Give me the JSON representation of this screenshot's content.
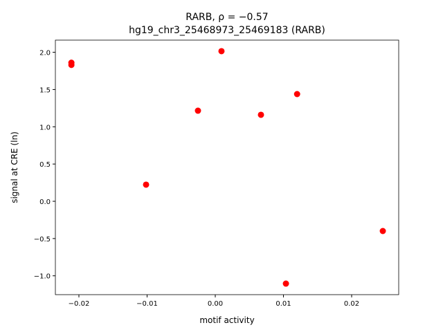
{
  "chart_data": {
    "type": "scatter",
    "title": "RARB, ρ = −0.57",
    "subtitle": "hg19_chr3_25468973_25469183 (RARB)",
    "x_label": "motif activity",
    "y_label": "signal at CRE (ln)",
    "color": "#ff0000",
    "x": [
      -0.0211,
      -0.0211,
      -0.01015,
      -0.00254,
      0.00091,
      0.0067,
      0.01036,
      0.012,
      0.02457
    ],
    "values": [
      1.86,
      1.83,
      0.223,
      1.216,
      2.015,
      1.161,
      -1.105,
      1.439,
      -0.399
    ],
    "xlim": [
      -0.02345,
      0.0269
    ],
    "ylim": [
      -1.253,
      2.163
    ],
    "xticks": [
      {
        "value": -0.02,
        "label": "−0.02"
      },
      {
        "value": -0.01,
        "label": "−0.01"
      },
      {
        "value": 0,
        "label": "0.00"
      },
      {
        "value": 0.01,
        "label": "0.01"
      },
      {
        "value": 0.02,
        "label": "0.02"
      }
    ],
    "yticks": [
      {
        "value": -1,
        "label": "−1.0"
      },
      {
        "value": -0.5,
        "label": "−0.5"
      },
      {
        "value": 0,
        "label": "0.0"
      },
      {
        "value": 0.5,
        "label": "0.5"
      },
      {
        "value": 1,
        "label": "1.0"
      },
      {
        "value": 1.5,
        "label": "1.5"
      },
      {
        "value": 2,
        "label": "2.0"
      }
    ]
  }
}
